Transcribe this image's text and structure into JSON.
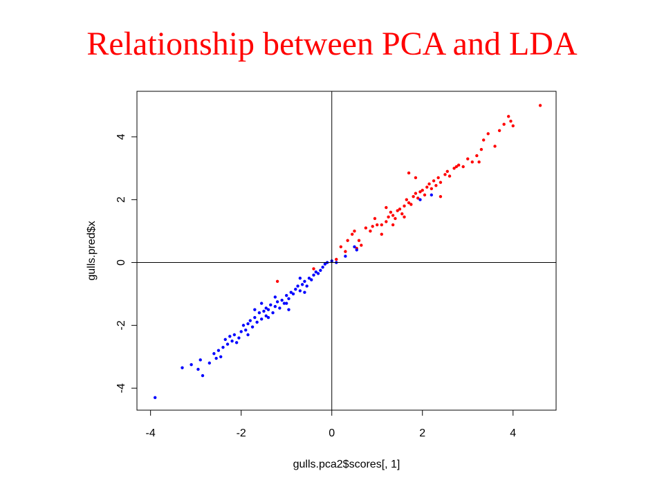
{
  "slide": {
    "title": "Relationship between PCA and LDA",
    "title_color": "#ff0000"
  },
  "chart_data": {
    "type": "scatter",
    "title": "",
    "xlabel": "gulls.pca2$scores[, 1]",
    "ylabel": "gulls.pred$x",
    "xlim": [
      -4.3,
      4.95
    ],
    "ylim": [
      -4.7,
      5.45
    ],
    "xticks": [
      -4,
      -2,
      0,
      2,
      4
    ],
    "yticks": [
      -4,
      -2,
      0,
      2,
      4
    ],
    "reference_lines": {
      "x": 0,
      "y": 0
    },
    "grid": false,
    "legend": "none",
    "series": [
      {
        "color": "#ff0000",
        "points": [
          [
            0.1,
            0.1
          ],
          [
            0.2,
            0.5
          ],
          [
            0.35,
            0.7
          ],
          [
            0.45,
            0.9
          ],
          [
            0.5,
            1.0
          ],
          [
            0.55,
            0.45
          ],
          [
            0.6,
            0.7
          ],
          [
            0.65,
            0.55
          ],
          [
            0.75,
            1.1
          ],
          [
            0.85,
            1.0
          ],
          [
            0.9,
            1.15
          ],
          [
            1.0,
            1.2
          ],
          [
            1.1,
            1.2
          ],
          [
            1.2,
            1.3
          ],
          [
            1.25,
            1.45
          ],
          [
            1.3,
            1.6
          ],
          [
            1.35,
            1.5
          ],
          [
            1.4,
            1.4
          ],
          [
            1.45,
            1.65
          ],
          [
            1.5,
            1.7
          ],
          [
            1.55,
            1.55
          ],
          [
            1.6,
            1.8
          ],
          [
            1.65,
            2.0
          ],
          [
            1.7,
            1.9
          ],
          [
            1.75,
            1.85
          ],
          [
            1.8,
            2.1
          ],
          [
            1.85,
            2.2
          ],
          [
            1.9,
            2.05
          ],
          [
            1.95,
            2.25
          ],
          [
            2.0,
            2.3
          ],
          [
            2.05,
            2.15
          ],
          [
            2.1,
            2.4
          ],
          [
            2.15,
            2.5
          ],
          [
            2.2,
            2.35
          ],
          [
            2.25,
            2.6
          ],
          [
            2.3,
            2.45
          ],
          [
            2.35,
            2.7
          ],
          [
            2.4,
            2.55
          ],
          [
            2.5,
            2.8
          ],
          [
            2.55,
            2.9
          ],
          [
            2.6,
            2.75
          ],
          [
            2.7,
            3.0
          ],
          [
            2.8,
            3.1
          ],
          [
            2.9,
            3.05
          ],
          [
            3.0,
            3.3
          ],
          [
            3.1,
            3.2
          ],
          [
            3.2,
            3.4
          ],
          [
            3.3,
            3.6
          ],
          [
            3.35,
            3.9
          ],
          [
            3.45,
            4.1
          ],
          [
            3.6,
            3.7
          ],
          [
            3.7,
            4.2
          ],
          [
            3.8,
            4.4
          ],
          [
            3.9,
            4.65
          ],
          [
            3.95,
            4.5
          ],
          [
            4.0,
            4.35
          ],
          [
            4.6,
            5.0
          ],
          [
            1.7,
            2.85
          ],
          [
            1.2,
            1.75
          ],
          [
            0.95,
            1.4
          ],
          [
            1.1,
            0.9
          ],
          [
            2.4,
            2.1
          ],
          [
            2.75,
            3.05
          ],
          [
            3.25,
            3.2
          ],
          [
            1.85,
            2.7
          ],
          [
            1.35,
            1.2
          ],
          [
            1.6,
            1.45
          ],
          [
            -0.4,
            -0.2
          ],
          [
            -1.2,
            -0.6
          ],
          [
            0.3,
            0.35
          ]
        ]
      },
      {
        "color": "#0000ff",
        "points": [
          [
            -3.9,
            -4.3
          ],
          [
            -3.3,
            -3.35
          ],
          [
            -3.1,
            -3.25
          ],
          [
            -2.95,
            -3.4
          ],
          [
            -2.9,
            -3.1
          ],
          [
            -2.85,
            -3.6
          ],
          [
            -2.7,
            -3.2
          ],
          [
            -2.55,
            -3.05
          ],
          [
            -2.5,
            -2.8
          ],
          [
            -2.45,
            -3.0
          ],
          [
            -2.4,
            -2.7
          ],
          [
            -2.35,
            -2.45
          ],
          [
            -2.3,
            -2.6
          ],
          [
            -2.25,
            -2.35
          ],
          [
            -2.2,
            -2.5
          ],
          [
            -2.15,
            -2.3
          ],
          [
            -2.1,
            -2.55
          ],
          [
            -2.0,
            -2.2
          ],
          [
            -1.95,
            -2.0
          ],
          [
            -1.9,
            -2.15
          ],
          [
            -1.85,
            -1.95
          ],
          [
            -1.8,
            -1.85
          ],
          [
            -1.75,
            -2.05
          ],
          [
            -1.7,
            -1.75
          ],
          [
            -1.65,
            -1.9
          ],
          [
            -1.6,
            -1.6
          ],
          [
            -1.55,
            -1.8
          ],
          [
            -1.5,
            -1.55
          ],
          [
            -1.45,
            -1.7
          ],
          [
            -1.4,
            -1.5
          ],
          [
            -1.35,
            -1.35
          ],
          [
            -1.3,
            -1.6
          ],
          [
            -1.25,
            -1.4
          ],
          [
            -1.2,
            -1.25
          ],
          [
            -1.15,
            -1.45
          ],
          [
            -1.1,
            -1.2
          ],
          [
            -1.05,
            -1.3
          ],
          [
            -1.0,
            -1.05
          ],
          [
            -0.95,
            -1.15
          ],
          [
            -0.9,
            -0.95
          ],
          [
            -0.85,
            -1.0
          ],
          [
            -0.8,
            -0.85
          ],
          [
            -0.75,
            -0.75
          ],
          [
            -0.7,
            -0.9
          ],
          [
            -0.65,
            -0.7
          ],
          [
            -0.6,
            -0.6
          ],
          [
            -0.55,
            -0.75
          ],
          [
            -0.5,
            -0.5
          ],
          [
            -0.45,
            -0.55
          ],
          [
            -0.4,
            -0.4
          ],
          [
            -0.35,
            -0.3
          ],
          [
            -0.3,
            -0.35
          ],
          [
            -0.25,
            -0.25
          ],
          [
            -0.2,
            -0.15
          ],
          [
            -0.15,
            -0.05
          ],
          [
            -0.1,
            0.0
          ],
          [
            0.0,
            0.05
          ],
          [
            0.1,
            0.0
          ],
          [
            0.3,
            0.2
          ],
          [
            0.5,
            0.5
          ],
          [
            0.55,
            0.4
          ],
          [
            1.95,
            2.0
          ],
          [
            2.2,
            2.15
          ],
          [
            -1.7,
            -1.5
          ],
          [
            -1.45,
            -1.45
          ],
          [
            -2.05,
            -2.4
          ],
          [
            -1.25,
            -1.1
          ],
          [
            -0.6,
            -0.95
          ],
          [
            -0.95,
            -1.5
          ],
          [
            -1.85,
            -2.3
          ],
          [
            -2.6,
            -2.9
          ],
          [
            -1.4,
            -1.75
          ],
          [
            -1.0,
            -1.3
          ],
          [
            -0.7,
            -0.5
          ],
          [
            -1.55,
            -1.3
          ]
        ]
      }
    ]
  }
}
